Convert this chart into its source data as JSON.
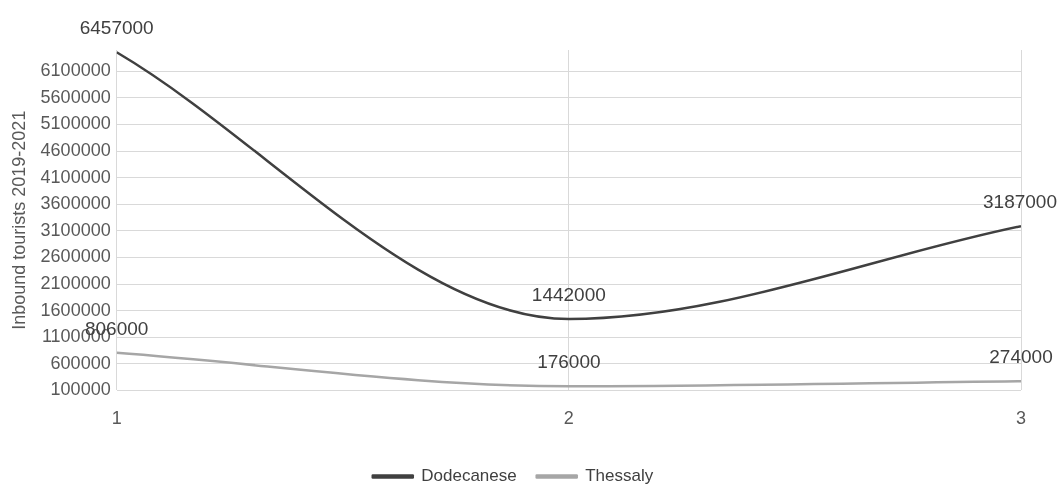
{
  "chart_data": {
    "type": "line",
    "ylabel": "Inbound tourists 2019-2021",
    "x": [
      1,
      2,
      3
    ],
    "xlim": [
      1,
      3
    ],
    "xticks": [
      1,
      2,
      3
    ],
    "ylim": [
      100000,
      6500000
    ],
    "yticks": [
      100000,
      600000,
      1100000,
      1600000,
      2100000,
      2600000,
      3100000,
      3600000,
      4100000,
      4600000,
      5100000,
      5600000,
      6100000
    ],
    "series": [
      {
        "name": "Dodecanese",
        "color": "#404040",
        "values": [
          6457000,
          1442000,
          3187000
        ]
      },
      {
        "name": "Thessaly",
        "color": "#a6a6a6",
        "values": [
          806000,
          176000,
          274000
        ]
      }
    ],
    "data_labels": true,
    "grid": true,
    "legend": "bottom",
    "marker": "none",
    "line_style": "solid"
  }
}
